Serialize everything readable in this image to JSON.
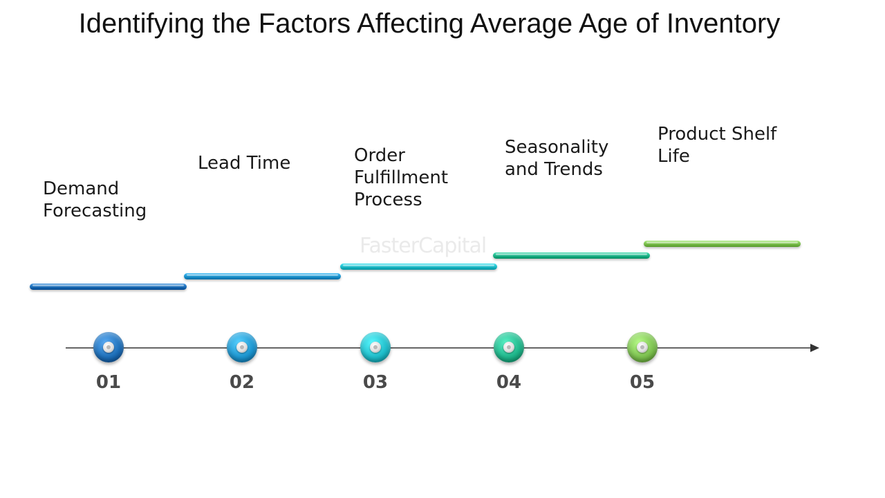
{
  "title": "Identifying the Factors Affecting Average Age of Inventory",
  "watermark": "FasterCapital",
  "factors": [
    {
      "label": "Demand\nForecasting",
      "number": "01",
      "color": "#1e6fb8"
    },
    {
      "label": "Lead Time",
      "number": "02",
      "color": "#1d95cf"
    },
    {
      "label": "Order\nFulfillment\nProcess",
      "number": "03",
      "color": "#1fbcc9"
    },
    {
      "label": "Seasonality\nand Trends",
      "number": "04",
      "color": "#1fb58a"
    },
    {
      "label": "Product Shelf\nLife",
      "number": "05",
      "color": "#7cc04f"
    }
  ],
  "colors": {
    "axis": "#333333",
    "text": "#1a1a1a",
    "number": "#4a4a4a"
  }
}
